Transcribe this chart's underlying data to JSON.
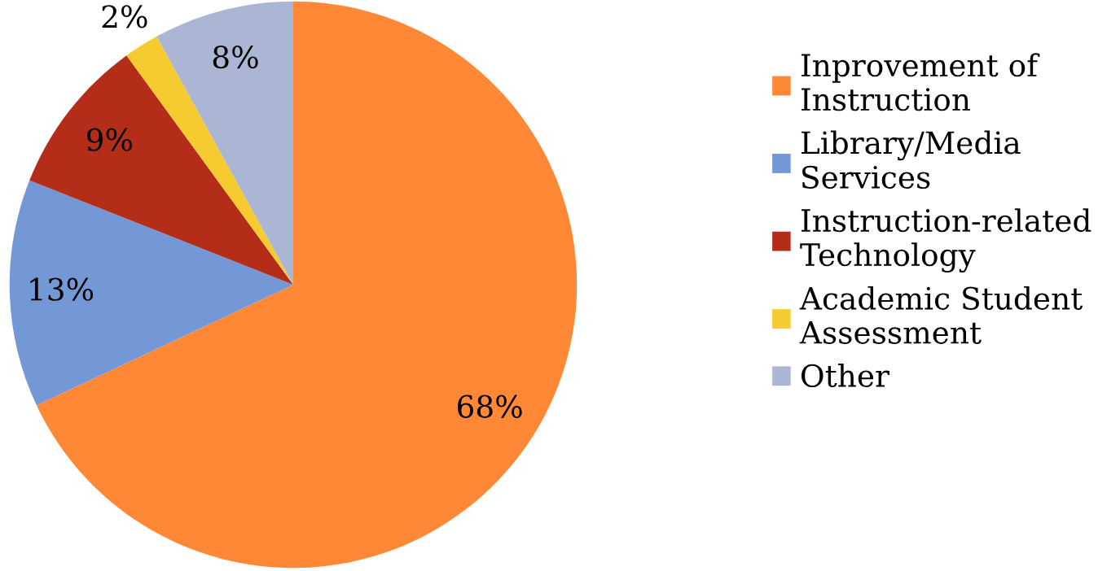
{
  "chart_data": {
    "type": "pie",
    "categories": [
      "Inprovement of\nInstruction",
      "Library/Media\nServices",
      "Instruction-related\nTechnology",
      "Academic Student\nAssessment",
      "Other"
    ],
    "values": [
      68,
      13,
      9,
      2,
      8
    ],
    "colors": [
      "#fe8836",
      "#7497d6",
      "#b32d18",
      "#f5cb30",
      "#abb6d4"
    ],
    "value_labels": [
      "68%",
      "13%",
      "9%",
      "2%",
      "8%"
    ],
    "legend": "right"
  }
}
